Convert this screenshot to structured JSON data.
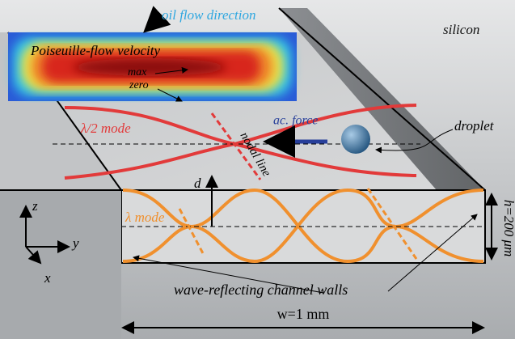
{
  "labels": {
    "flow": "oil flow direction",
    "silicon": "silicon",
    "velocity": "Poiseuille-flow velocity",
    "max": "max",
    "zero": "zero",
    "nodal": "nodal line",
    "force": "ac. force",
    "droplet": "droplet",
    "half_mode": "λ/2 mode",
    "d": "d",
    "mode": "λ mode",
    "height": "h=200 μm",
    "z": "z",
    "y": "y",
    "x": "x",
    "walls": "wave-reflecting channel walls",
    "width": "w=1 mm"
  }
}
